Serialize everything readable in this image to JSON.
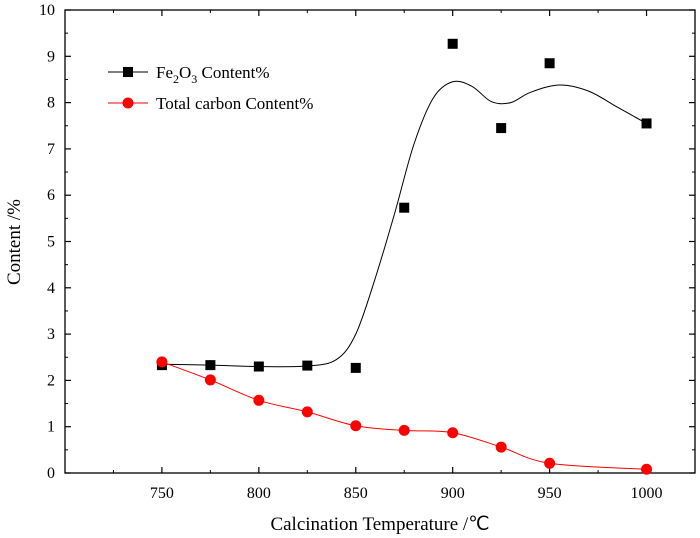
{
  "chart_data": {
    "type": "scatter",
    "title": "",
    "xlabel": "Calcination Temperature /℃",
    "ylabel": "Content /%",
    "xlim": [
      700,
      1025
    ],
    "ylim": [
      0,
      10
    ],
    "x_ticks": [
      750,
      800,
      850,
      900,
      950,
      1000
    ],
    "y_ticks": [
      0,
      1,
      2,
      3,
      4,
      5,
      6,
      7,
      8,
      9,
      10
    ],
    "grid": false,
    "legend_position": "top-left",
    "series": [
      {
        "name": "Fe2O3 Content%",
        "legend": {
          "base": "Fe",
          "sub1": "2",
          "mid": "O",
          "sub2": "3",
          "rest": " Content%"
        },
        "marker": "square",
        "color": "#000000",
        "x": [
          750,
          775,
          800,
          825,
          850,
          875,
          900,
          925,
          950,
          1000
        ],
        "y": [
          2.33,
          2.33,
          2.3,
          2.32,
          2.27,
          5.73,
          9.27,
          7.45,
          8.85,
          7.55
        ],
        "fit_x": [
          750,
          775,
          800,
          825,
          840,
          850,
          860,
          870,
          880,
          890,
          900,
          910,
          920,
          930,
          940,
          955,
          970,
          985,
          1000
        ],
        "fit_y": [
          2.35,
          2.33,
          2.3,
          2.31,
          2.45,
          3.0,
          4.2,
          5.6,
          7.1,
          8.1,
          8.45,
          8.35,
          8.02,
          8.0,
          8.22,
          8.38,
          8.25,
          7.9,
          7.55
        ]
      },
      {
        "name": "Total carbon Content%",
        "marker": "circle",
        "color": "#ff0000",
        "x": [
          750,
          775,
          800,
          825,
          850,
          875,
          900,
          925,
          950,
          1000
        ],
        "y": [
          2.4,
          2.01,
          1.57,
          1.32,
          1.02,
          0.92,
          0.87,
          0.56,
          0.21,
          0.08
        ]
      }
    ]
  }
}
